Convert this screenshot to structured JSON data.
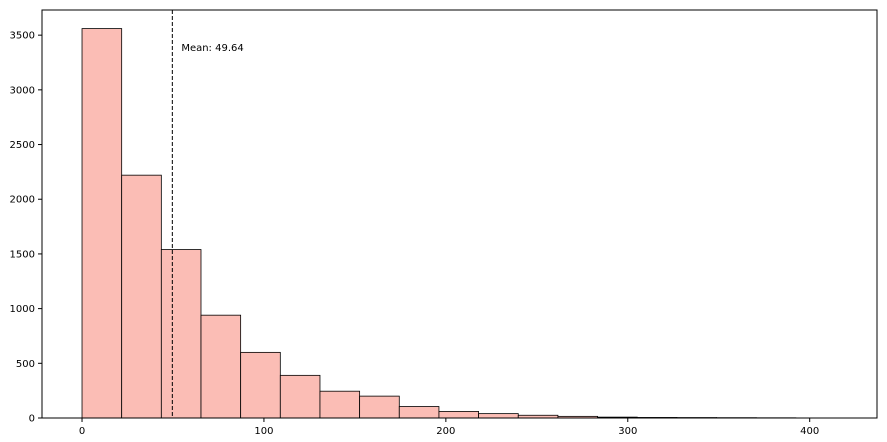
{
  "chart_data": {
    "type": "bar",
    "subtype": "histogram",
    "bin_edges": [
      0,
      21.8,
      43.6,
      65.4,
      87.2,
      109,
      130.8,
      152.6,
      174.4,
      196.2,
      218,
      239.8,
      261.6,
      283.4,
      305.2,
      327,
      348.8,
      370.6,
      392.4
    ],
    "values": [
      3560,
      2220,
      1540,
      940,
      600,
      390,
      245,
      200,
      105,
      60,
      40,
      25,
      15,
      8,
      5,
      4,
      3,
      2
    ],
    "xlim": [
      -22,
      437
    ],
    "ylim": [
      0,
      3730
    ],
    "xticks": [
      0,
      100,
      200,
      300,
      400
    ],
    "xtick_labels": [
      "0",
      "100",
      "200",
      "300",
      "400"
    ],
    "yticks": [
      0,
      500,
      1000,
      1500,
      2000,
      2500,
      3000,
      3500
    ],
    "ytick_labels": [
      "0",
      "500",
      "1000",
      "1500",
      "2000",
      "2500",
      "3000",
      "3500"
    ],
    "mean_line": {
      "x": 49.64,
      "label": "Mean: 49.64"
    },
    "colors": {
      "bar_fill": "#fbbdb5",
      "bar_edge": "#000000",
      "mean_line": "#000000"
    },
    "grid": false,
    "title": "",
    "xlabel": "",
    "ylabel": ""
  }
}
